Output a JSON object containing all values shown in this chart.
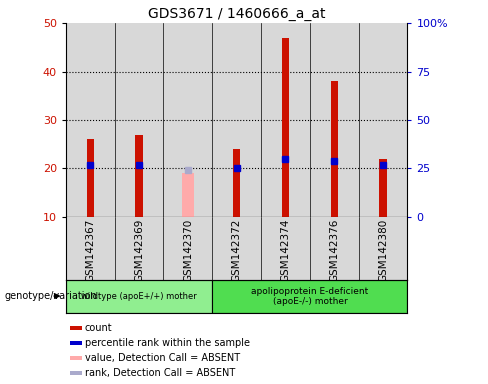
{
  "title": "GDS3671 / 1460666_a_at",
  "samples": [
    "GSM142367",
    "GSM142369",
    "GSM142370",
    "GSM142372",
    "GSM142374",
    "GSM142376",
    "GSM142380"
  ],
  "count_values": [
    26,
    27,
    null,
    24,
    47,
    38,
    22
  ],
  "count_absent": [
    null,
    null,
    19,
    null,
    null,
    null,
    null
  ],
  "percentile_values": [
    27,
    27,
    null,
    25,
    30,
    29,
    27
  ],
  "percentile_absent": [
    null,
    null,
    24,
    null,
    null,
    null,
    null
  ],
  "group1_indices": [
    0,
    1,
    2
  ],
  "group2_indices": [
    3,
    4,
    5,
    6
  ],
  "group1_label": "wildtype (apoE+/+) mother",
  "group2_label": "apolipoprotein E-deficient\n(apoE-/-) mother",
  "group1_color": "#90ee90",
  "group2_color": "#50dd50",
  "ylim_left": [
    10,
    50
  ],
  "ylim_right": [
    0,
    100
  ],
  "yticks_left": [
    10,
    20,
    30,
    40,
    50
  ],
  "yticks_right": [
    0,
    25,
    50,
    75,
    100
  ],
  "ytick_labels_right": [
    "0",
    "25",
    "50",
    "75",
    "100%"
  ],
  "bar_color_count": "#cc1100",
  "bar_color_absent": "#ffaaaa",
  "marker_color_present": "#0000cc",
  "marker_color_absent": "#aaaacc",
  "sample_bg_color": "#d8d8d8",
  "plot_bg_color": "#ffffff",
  "bar_width": 0.15,
  "absent_bar_width": 0.25,
  "legend_items": [
    {
      "color": "#cc1100",
      "label": "count"
    },
    {
      "color": "#0000cc",
      "label": "percentile rank within the sample"
    },
    {
      "color": "#ffaaaa",
      "label": "value, Detection Call = ABSENT"
    },
    {
      "color": "#aaaacc",
      "label": "rank, Detection Call = ABSENT"
    }
  ],
  "genotype_label": "genotype/variation"
}
